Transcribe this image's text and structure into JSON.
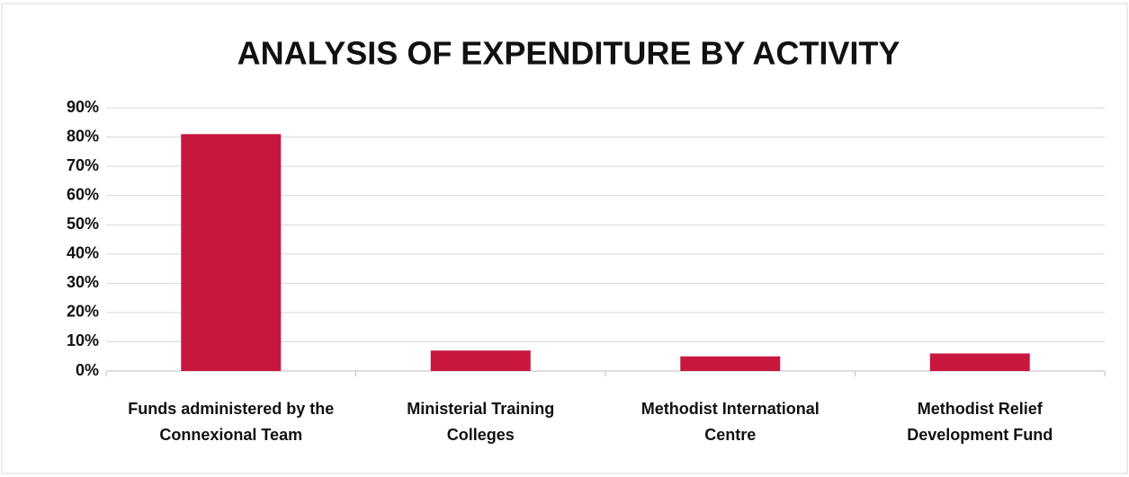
{
  "chart_data": {
    "type": "bar",
    "title": "ANALYSIS OF EXPENDITURE BY ACTIVITY",
    "categories": [
      "Funds administered by the Connexional Team",
      "Ministerial Training Colleges",
      "Methodist International Centre",
      "Methodist Relief Development Fund"
    ],
    "values": [
      81,
      7,
      5,
      6
    ],
    "color": "#c8173f",
    "ylim": [
      0,
      90
    ],
    "yticks": [
      {
        "value": 0,
        "label": "0%"
      },
      {
        "value": 10,
        "label": "10%"
      },
      {
        "value": 20,
        "label": "20%"
      },
      {
        "value": 30,
        "label": "30%"
      },
      {
        "value": 40,
        "label": "40%"
      },
      {
        "value": 50,
        "label": "50%"
      },
      {
        "value": 60,
        "label": "60%"
      },
      {
        "value": 70,
        "label": "70%"
      },
      {
        "value": 80,
        "label": "80%"
      },
      {
        "value": 90,
        "label": "90%"
      }
    ],
    "grid": true
  }
}
